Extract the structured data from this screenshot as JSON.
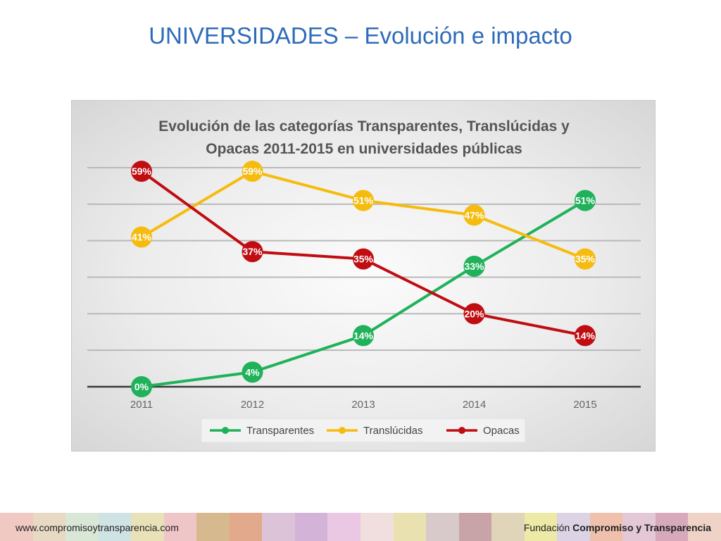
{
  "slide": {
    "title": "UNIVERSIDADES – Evolución e impacto"
  },
  "footer": {
    "website": "www.compromisoytransparencia.com",
    "org_prefix": "Fundación",
    "org_name": "Compromiso y Transparencia"
  },
  "chart_data": {
    "type": "line",
    "title_line1": "Evolución de las categorías Transparentes, Translúcidas y",
    "title_line2": "Opacas 2011-2015 en universidades públicas",
    "categories": [
      "2011",
      "2012",
      "2013",
      "2014",
      "2015"
    ],
    "ylim": [
      0,
      60
    ],
    "grid": true,
    "legend_position": "bottom",
    "value_suffix": "%",
    "series": [
      {
        "name": "Transparentes",
        "color": "#1fb25a",
        "values": [
          0,
          4,
          14,
          33,
          51
        ]
      },
      {
        "name": "Translúcidas",
        "color": "#f5bc0f",
        "values": [
          41,
          59,
          51,
          47,
          35
        ]
      },
      {
        "name": "Opacas",
        "color": "#c00d12",
        "values": [
          59,
          37,
          35,
          20,
          14
        ]
      }
    ]
  }
}
